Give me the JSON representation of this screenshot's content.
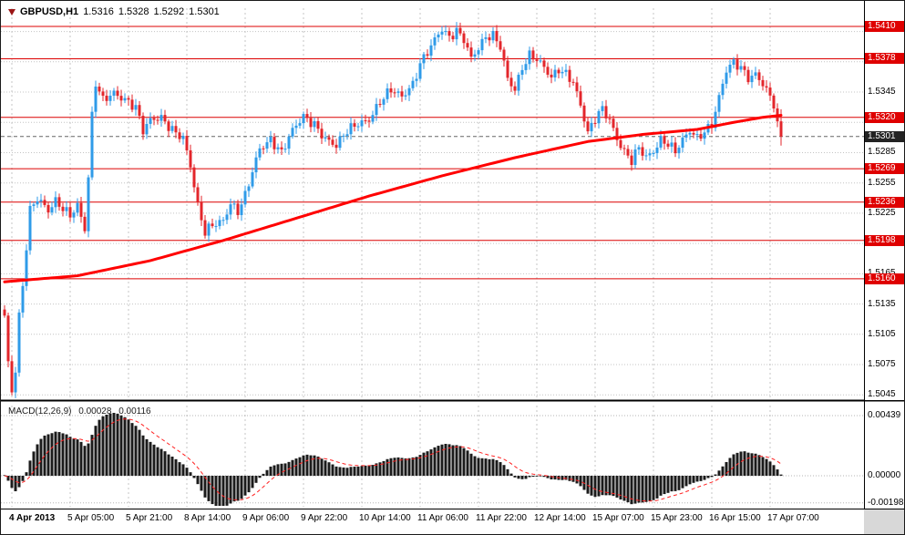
{
  "header": {
    "symbol": "GBPUSD,H1",
    "open": "1.5316",
    "high": "1.5328",
    "low": "1.5292",
    "close": "1.5301"
  },
  "macd_title": {
    "name": "MACD(12,26,9)",
    "value_main": "0.00028",
    "value_signal": "0.00116"
  },
  "price_scale": {
    "labels": [
      {
        "text": "1.5410",
        "type": "level"
      },
      {
        "text": "1.5378",
        "type": "level"
      },
      {
        "text": "1.5345",
        "type": "grid"
      },
      {
        "text": "1.5320",
        "type": "level"
      },
      {
        "text": "1.5301",
        "type": "bid"
      },
      {
        "text": "1.5285",
        "type": "grid"
      },
      {
        "text": "1.5269",
        "type": "level"
      },
      {
        "text": "1.5255",
        "type": "grid"
      },
      {
        "text": "1.5236",
        "type": "level"
      },
      {
        "text": "1.5225",
        "type": "grid"
      },
      {
        "text": "1.5198",
        "type": "level"
      },
      {
        "text": "1.5165",
        "type": "grid"
      },
      {
        "text": "1.5160",
        "type": "level"
      },
      {
        "text": "1.5135",
        "type": "grid"
      },
      {
        "text": "1.5105",
        "type": "grid"
      },
      {
        "text": "1.5075",
        "type": "grid"
      },
      {
        "text": "1.5045",
        "type": "grid"
      }
    ]
  },
  "macd_scale": {
    "labels": [
      {
        "text": "0.00439"
      },
      {
        "text": "0.00000"
      },
      {
        "text": "-0.00198"
      }
    ]
  },
  "time_axis": {
    "labels": [
      {
        "text": "4 Apr 2013",
        "bar": 2,
        "bold": true
      },
      {
        "text": "5 Apr 05:00",
        "bar": 18
      },
      {
        "text": "5 Apr 21:00",
        "bar": 34
      },
      {
        "text": "8 Apr 14:00",
        "bar": 50
      },
      {
        "text": "9 Apr 06:00",
        "bar": 66
      },
      {
        "text": "9 Apr 22:00",
        "bar": 82
      },
      {
        "text": "10 Apr 14:00",
        "bar": 98
      },
      {
        "text": "11 Apr 06:00",
        "bar": 114
      },
      {
        "text": "11 Apr 22:00",
        "bar": 130
      },
      {
        "text": "12 Apr 14:00",
        "bar": 146
      },
      {
        "text": "15 Apr 07:00",
        "bar": 162
      },
      {
        "text": "15 Apr 23:00",
        "bar": 178
      },
      {
        "text": "16 Apr 15:00",
        "bar": 194
      },
      {
        "text": "17 Apr 07:00",
        "bar": 210
      }
    ]
  },
  "colors": {
    "bull": "#2f9be8",
    "bear": "#e3262b",
    "ma_line": "#ff0000",
    "level_line": "#dc0000",
    "bid_line": "#666666",
    "histogram": "#1b1b1b",
    "signal_line": "#ff2020",
    "grid": "#c4c4c4",
    "label_level_bg": "#df0000",
    "label_bid_bg": "#232323"
  },
  "chart_data": {
    "type": "candlestick",
    "symbol": "GBPUSD",
    "timeframe": "H1",
    "title": "GBPUSD,H1",
    "quote": {
      "open": 1.5316,
      "high": 1.5328,
      "low": 1.5292,
      "close": 1.5301
    },
    "bid": 1.5301,
    "levels": [
      1.541,
      1.5378,
      1.532,
      1.5269,
      1.5236,
      1.5198,
      1.516
    ],
    "grid": {
      "min": 1.5045,
      "step": 0.003,
      "count": 13
    },
    "ylim": [
      1.50407,
      1.54281
    ],
    "bars": 214,
    "price_path": [
      [
        0,
        1.512
      ],
      [
        1,
        1.5075
      ],
      [
        2,
        1.5048
      ],
      [
        3,
        1.507
      ],
      [
        4,
        1.5125
      ],
      [
        5,
        1.5155
      ],
      [
        6,
        1.5195
      ],
      [
        7,
        1.523
      ],
      [
        9,
        1.524
      ],
      [
        12,
        1.5225
      ],
      [
        14,
        1.5235
      ],
      [
        16,
        1.523
      ],
      [
        18,
        1.5225
      ],
      [
        20,
        1.5235
      ],
      [
        22,
        1.521
      ],
      [
        23,
        1.526
      ],
      [
        24,
        1.532
      ],
      [
        25,
        1.5352
      ],
      [
        27,
        1.5335
      ],
      [
        30,
        1.5345
      ],
      [
        33,
        1.534
      ],
      [
        36,
        1.533
      ],
      [
        38,
        1.5305
      ],
      [
        40,
        1.5315
      ],
      [
        43,
        1.532
      ],
      [
        46,
        1.531
      ],
      [
        49,
        1.53
      ],
      [
        51,
        1.527
      ],
      [
        53,
        1.523
      ],
      [
        55,
        1.5205
      ],
      [
        57,
        1.5215
      ],
      [
        60,
        1.522
      ],
      [
        62,
        1.5235
      ],
      [
        64,
        1.5225
      ],
      [
        66,
        1.524
      ],
      [
        68,
        1.5265
      ],
      [
        70,
        1.529
      ],
      [
        73,
        1.53
      ],
      [
        76,
        1.5285
      ],
      [
        79,
        1.5305
      ],
      [
        82,
        1.532
      ],
      [
        85,
        1.5315
      ],
      [
        88,
        1.53
      ],
      [
        91,
        1.529
      ],
      [
        94,
        1.5305
      ],
      [
        97,
        1.5315
      ],
      [
        100,
        1.532
      ],
      [
        103,
        1.5335
      ],
      [
        106,
        1.5345
      ],
      [
        109,
        1.534
      ],
      [
        112,
        1.5355
      ],
      [
        114,
        1.5375
      ],
      [
        116,
        1.5385
      ],
      [
        118,
        1.5395
      ],
      [
        120,
        1.5405
      ],
      [
        122,
        1.5398
      ],
      [
        124,
        1.5407
      ],
      [
        126,
        1.54
      ],
      [
        128,
        1.538
      ],
      [
        130,
        1.5388
      ],
      [
        132,
        1.5397
      ],
      [
        134,
        1.5399
      ],
      [
        136,
        1.539
      ],
      [
        138,
        1.536
      ],
      [
        140,
        1.535
      ],
      [
        142,
        1.537
      ],
      [
        144,
        1.538
      ],
      [
        146,
        1.5375
      ],
      [
        148,
        1.5368
      ],
      [
        150,
        1.536
      ],
      [
        152,
        1.537
      ],
      [
        154,
        1.5365
      ],
      [
        156,
        1.5355
      ],
      [
        158,
        1.533
      ],
      [
        160,
        1.5302
      ],
      [
        162,
        1.5318
      ],
      [
        164,
        1.533
      ],
      [
        166,
        1.532
      ],
      [
        168,
        1.53
      ],
      [
        170,
        1.5285
      ],
      [
        172,
        1.5275
      ],
      [
        174,
        1.5288
      ],
      [
        176,
        1.528
      ],
      [
        178,
        1.5288
      ],
      [
        180,
        1.53
      ],
      [
        182,
        1.5295
      ],
      [
        184,
        1.5285
      ],
      [
        186,
        1.5295
      ],
      [
        188,
        1.5305
      ],
      [
        190,
        1.53
      ],
      [
        192,
        1.5308
      ],
      [
        194,
        1.5315
      ],
      [
        196,
        1.534
      ],
      [
        198,
        1.5365
      ],
      [
        200,
        1.5372
      ],
      [
        202,
        1.5368
      ],
      [
        204,
        1.536
      ],
      [
        206,
        1.5365
      ],
      [
        208,
        1.5355
      ],
      [
        210,
        1.534
      ],
      [
        211,
        1.5332
      ],
      [
        212,
        1.5317
      ],
      [
        213,
        1.5301
      ]
    ],
    "ma_path": [
      [
        0,
        1.5157
      ],
      [
        20,
        1.5163
      ],
      [
        40,
        1.5178
      ],
      [
        60,
        1.5198
      ],
      [
        80,
        1.522
      ],
      [
        100,
        1.5242
      ],
      [
        120,
        1.5262
      ],
      [
        140,
        1.528
      ],
      [
        160,
        1.5296
      ],
      [
        175,
        1.5303
      ],
      [
        190,
        1.5308
      ],
      [
        200,
        1.5315
      ],
      [
        208,
        1.532
      ],
      [
        213,
        1.5322
      ]
    ],
    "macd": {
      "fast": 12,
      "slow": 26,
      "signal": 9,
      "ylim": [
        -0.00226,
        0.00512
      ],
      "scale_labels": [
        0.00439,
        0,
        -0.00198
      ],
      "last_main": 0.00028,
      "last_signal": 0.00116
    }
  }
}
